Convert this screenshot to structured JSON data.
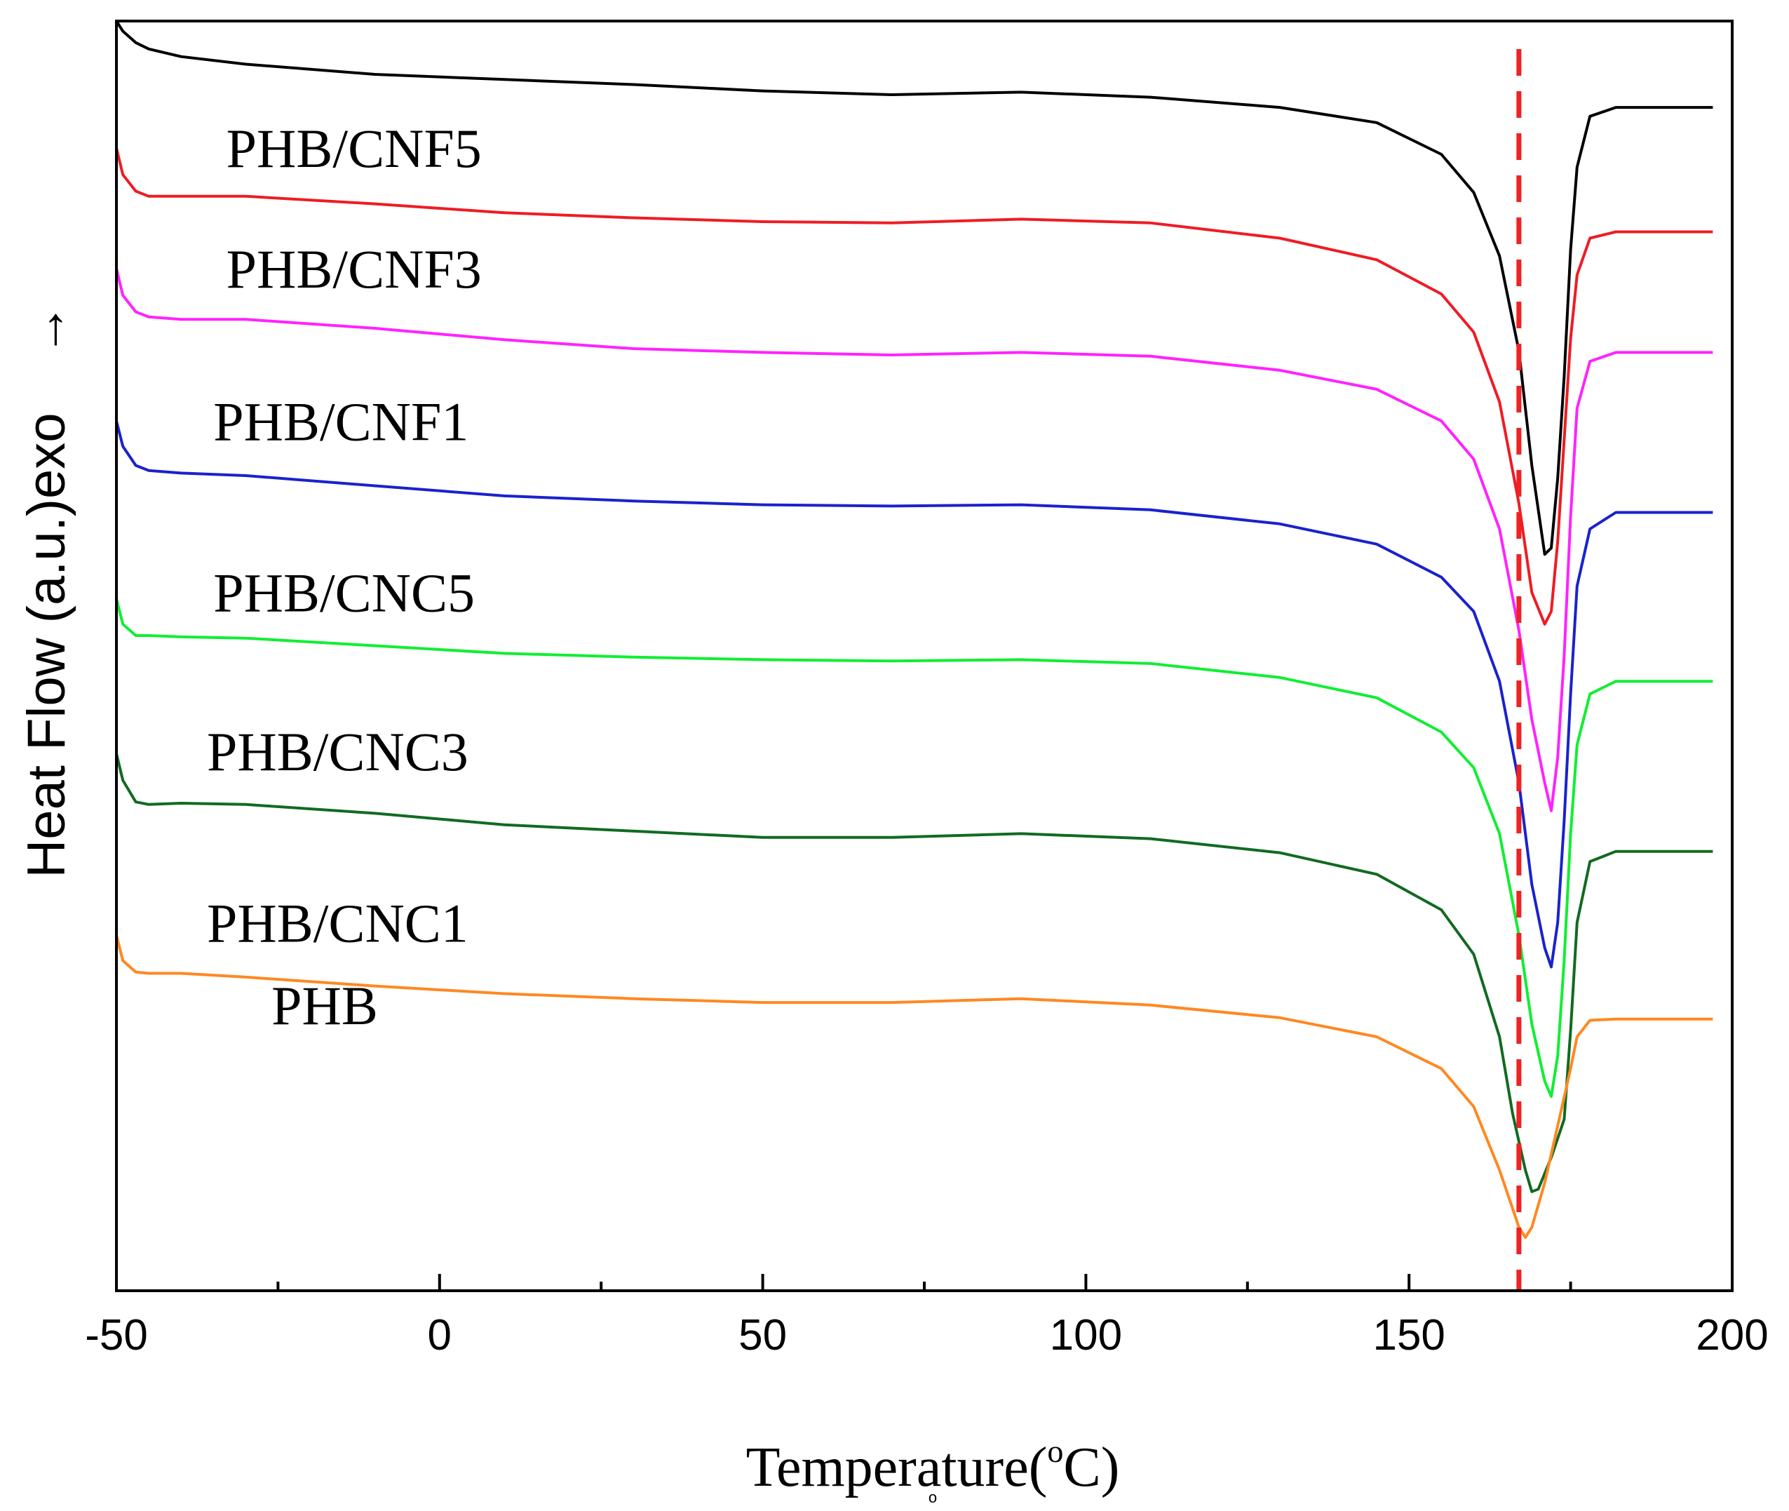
{
  "chart_data": {
    "type": "line",
    "title": "",
    "xlabel": "Temperature(°C)",
    "xlabel_main": "Temperature(",
    "xlabel_degree": "o",
    "xlabel_unit": "C)",
    "xlabel_marker": "o",
    "ylabel": "Heat Flow (a.u.)exo",
    "y_arrow": "→",
    "xlim": [
      -50,
      200
    ],
    "ylim": [
      0,
      100
    ],
    "xticks": [
      -50,
      0,
      50,
      100,
      150,
      200
    ],
    "xtick_labels": [
      "-50",
      "0",
      "50",
      "100",
      "150",
      "200"
    ],
    "minor_xticks": [
      -25,
      25,
      75,
      125,
      175
    ],
    "grid": false,
    "reference_line": {
      "x": 167,
      "color": "#ee2222",
      "style": "dashed"
    },
    "series": [
      {
        "name": "PHB/CNF5",
        "color": "#000000",
        "points": [
          [
            -50,
            100
          ],
          [
            -49,
            99.2
          ],
          [
            -47,
            98.3
          ],
          [
            -45,
            97.8
          ],
          [
            -40,
            97.2
          ],
          [
            -30,
            96.6
          ],
          [
            -10,
            95.8
          ],
          [
            10,
            95.4
          ],
          [
            30,
            95.0
          ],
          [
            50,
            94.5
          ],
          [
            70,
            94.2
          ],
          [
            90,
            94.4
          ],
          [
            110,
            94.0
          ],
          [
            130,
            93.2
          ],
          [
            145,
            92.0
          ],
          [
            155,
            89.5
          ],
          [
            160,
            86.5
          ],
          [
            164,
            81.5
          ],
          [
            167,
            74.0
          ],
          [
            169,
            65.0
          ],
          [
            171,
            58.0
          ],
          [
            172,
            58.5
          ],
          [
            173,
            64.0
          ],
          [
            174,
            72.0
          ],
          [
            175,
            82.0
          ],
          [
            176,
            88.5
          ],
          [
            178,
            92.5
          ],
          [
            182,
            93.2
          ],
          [
            197,
            93.2
          ]
        ]
      },
      {
        "name": "PHB/CNF3",
        "color": "#ee1c24",
        "points": [
          [
            -50,
            90.0
          ],
          [
            -49,
            87.9
          ],
          [
            -47,
            86.6
          ],
          [
            -45,
            86.2
          ],
          [
            -40,
            86.2
          ],
          [
            -30,
            86.2
          ],
          [
            -10,
            85.6
          ],
          [
            10,
            84.9
          ],
          [
            30,
            84.5
          ],
          [
            50,
            84.2
          ],
          [
            70,
            84.1
          ],
          [
            90,
            84.4
          ],
          [
            110,
            84.1
          ],
          [
            130,
            82.9
          ],
          [
            145,
            81.2
          ],
          [
            155,
            78.5
          ],
          [
            160,
            75.5
          ],
          [
            164,
            70.0
          ],
          [
            167,
            62.0
          ],
          [
            169,
            55.0
          ],
          [
            171,
            52.5
          ],
          [
            172,
            53.5
          ],
          [
            173,
            59.0
          ],
          [
            174,
            67.0
          ],
          [
            175,
            75.0
          ],
          [
            176,
            80.0
          ],
          [
            178,
            82.9
          ],
          [
            182,
            83.4
          ],
          [
            197,
            83.4
          ]
        ]
      },
      {
        "name": "PHB/CNF1",
        "color": "#ff22ff",
        "points": [
          [
            -50,
            80.5
          ],
          [
            -49,
            78.4
          ],
          [
            -47,
            77.1
          ],
          [
            -45,
            76.7
          ],
          [
            -40,
            76.5
          ],
          [
            -30,
            76.5
          ],
          [
            -10,
            75.8
          ],
          [
            10,
            74.9
          ],
          [
            30,
            74.2
          ],
          [
            50,
            73.9
          ],
          [
            70,
            73.7
          ],
          [
            90,
            73.9
          ],
          [
            110,
            73.6
          ],
          [
            130,
            72.5
          ],
          [
            145,
            71.0
          ],
          [
            155,
            68.5
          ],
          [
            160,
            65.5
          ],
          [
            164,
            60.0
          ],
          [
            167,
            52.0
          ],
          [
            169,
            45.0
          ],
          [
            171,
            40.0
          ],
          [
            172,
            37.8
          ],
          [
            173,
            42.0
          ],
          [
            174,
            50.0
          ],
          [
            175,
            61.0
          ],
          [
            176,
            69.5
          ],
          [
            178,
            73.2
          ],
          [
            182,
            73.9
          ],
          [
            197,
            73.9
          ]
        ]
      },
      {
        "name": "PHB/CNC5",
        "color": "#1a22cc",
        "points": [
          [
            -50,
            68.5
          ],
          [
            -49,
            66.5
          ],
          [
            -47,
            65.0
          ],
          [
            -45,
            64.6
          ],
          [
            -40,
            64.4
          ],
          [
            -30,
            64.2
          ],
          [
            -10,
            63.4
          ],
          [
            10,
            62.6
          ],
          [
            30,
            62.2
          ],
          [
            50,
            61.9
          ],
          [
            70,
            61.8
          ],
          [
            90,
            61.9
          ],
          [
            110,
            61.5
          ],
          [
            130,
            60.4
          ],
          [
            145,
            58.8
          ],
          [
            155,
            56.2
          ],
          [
            160,
            53.5
          ],
          [
            164,
            48.0
          ],
          [
            167,
            40.0
          ],
          [
            169,
            32.0
          ],
          [
            171,
            27.0
          ],
          [
            172,
            25.5
          ],
          [
            173,
            29.0
          ],
          [
            174,
            37.0
          ],
          [
            175,
            47.0
          ],
          [
            176,
            55.5
          ],
          [
            178,
            60.0
          ],
          [
            182,
            61.3
          ],
          [
            197,
            61.3
          ]
        ]
      },
      {
        "name": "PHB/CNC3",
        "color": "#11ee33",
        "points": [
          [
            -50,
            54.5
          ],
          [
            -49,
            52.5
          ],
          [
            -47,
            51.6
          ],
          [
            -45,
            51.6
          ],
          [
            -40,
            51.5
          ],
          [
            -30,
            51.4
          ],
          [
            -10,
            50.8
          ],
          [
            10,
            50.2
          ],
          [
            30,
            49.9
          ],
          [
            50,
            49.7
          ],
          [
            70,
            49.6
          ],
          [
            90,
            49.7
          ],
          [
            110,
            49.4
          ],
          [
            130,
            48.3
          ],
          [
            145,
            46.7
          ],
          [
            155,
            44.0
          ],
          [
            160,
            41.2
          ],
          [
            164,
            36.0
          ],
          [
            167,
            28.0
          ],
          [
            169,
            21.0
          ],
          [
            171,
            16.5
          ],
          [
            172,
            15.3
          ],
          [
            173,
            18.5
          ],
          [
            174,
            26.0
          ],
          [
            175,
            36.0
          ],
          [
            176,
            43.0
          ],
          [
            178,
            47.0
          ],
          [
            182,
            48.0
          ],
          [
            197,
            48.0
          ]
        ]
      },
      {
        "name": "PHB/CNC1",
        "color": "#116a22",
        "points": [
          [
            -50,
            42.3
          ],
          [
            -49,
            40.2
          ],
          [
            -47,
            38.5
          ],
          [
            -45,
            38.3
          ],
          [
            -40,
            38.4
          ],
          [
            -30,
            38.3
          ],
          [
            -10,
            37.6
          ],
          [
            10,
            36.7
          ],
          [
            30,
            36.2
          ],
          [
            50,
            35.7
          ],
          [
            70,
            35.7
          ],
          [
            90,
            36.0
          ],
          [
            110,
            35.6
          ],
          [
            130,
            34.5
          ],
          [
            145,
            32.8
          ],
          [
            155,
            30.0
          ],
          [
            160,
            26.5
          ],
          [
            164,
            20.0
          ],
          [
            166,
            14.0
          ],
          [
            168,
            9.5
          ],
          [
            169,
            7.8
          ],
          [
            170,
            8.0
          ],
          [
            172,
            10.5
          ],
          [
            174,
            13.5
          ],
          [
            175,
            20.5
          ],
          [
            176,
            29.0
          ],
          [
            178,
            33.8
          ],
          [
            182,
            34.6
          ],
          [
            197,
            34.6
          ]
        ]
      },
      {
        "name": "PHB",
        "color": "#ff8822",
        "points": [
          [
            -50,
            28.0
          ],
          [
            -49,
            26.0
          ],
          [
            -47,
            25.1
          ],
          [
            -45,
            25.0
          ],
          [
            -40,
            25.0
          ],
          [
            -30,
            24.7
          ],
          [
            -10,
            24.0
          ],
          [
            10,
            23.4
          ],
          [
            30,
            23.0
          ],
          [
            50,
            22.7
          ],
          [
            70,
            22.7
          ],
          [
            90,
            23.0
          ],
          [
            110,
            22.5
          ],
          [
            130,
            21.5
          ],
          [
            145,
            20.0
          ],
          [
            155,
            17.5
          ],
          [
            160,
            14.5
          ],
          [
            164,
            9.5
          ],
          [
            166,
            6.5
          ],
          [
            167,
            5.0
          ],
          [
            168,
            4.2
          ],
          [
            169,
            5.0
          ],
          [
            171,
            8.5
          ],
          [
            173,
            13.0
          ],
          [
            175,
            17.5
          ],
          [
            176,
            20.0
          ],
          [
            178,
            21.3
          ],
          [
            182,
            21.4
          ],
          [
            197,
            21.4
          ]
        ]
      }
    ],
    "labels": [
      {
        "text": "PHB/CNF5",
        "x": -33,
        "y": 88.5
      },
      {
        "text": "PHB/CNF3",
        "x": -33,
        "y": 79.0
      },
      {
        "text": "PHB/CNF1",
        "x": -35,
        "y": 67.0
      },
      {
        "text": "PHB/CNC5",
        "x": -35,
        "y": 53.5
      },
      {
        "text": "PHB/CNC3",
        "x": -36,
        "y": 41.0
      },
      {
        "text": "PHB/CNC1",
        "x": -36,
        "y": 27.5
      },
      {
        "text": "PHB",
        "x": -26,
        "y": 21.0
      }
    ]
  }
}
